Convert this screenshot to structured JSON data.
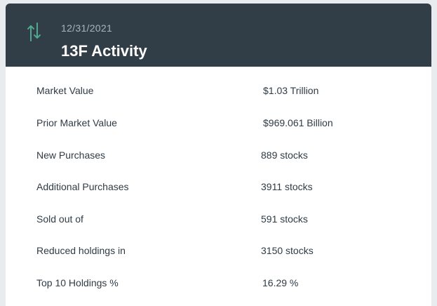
{
  "header": {
    "icon": "up-down-arrows-icon",
    "date": "12/31/2021",
    "title": "13F Activity",
    "accent_color": "#4fa88f",
    "background_color": "#313d47"
  },
  "rows": [
    {
      "label": "Market Value",
      "value": "$1.03 Trillion"
    },
    {
      "label": "Prior Market Value",
      "value": "$969.061 Billion"
    },
    {
      "label": "New Purchases",
      "value": "889 stocks"
    },
    {
      "label": "Additional Purchases",
      "value": "3911 stocks"
    },
    {
      "label": "Sold out of",
      "value": "591 stocks"
    },
    {
      "label": "Reduced holdings in",
      "value": "3150 stocks"
    },
    {
      "label": "Top 10 Holdings %",
      "value": "16.29 %"
    }
  ]
}
